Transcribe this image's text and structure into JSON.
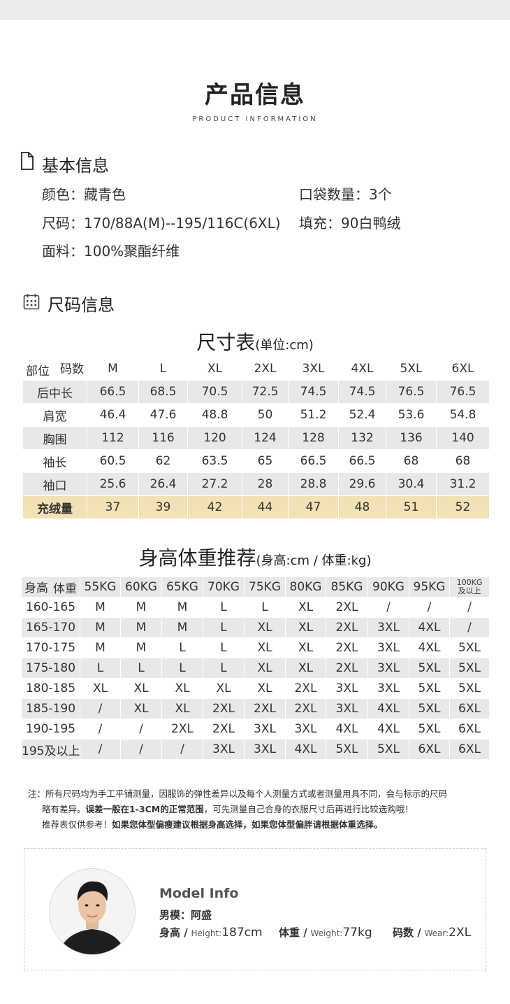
{
  "header": {
    "title": "产品信息",
    "subtitle": "PRODUCT INFORMATION"
  },
  "basic_info": {
    "heading": "基本信息",
    "color": "颜色：藏青色",
    "pockets": "口袋数量：3个",
    "size": "尺码：170/88A(M)--195/116C(6XL)",
    "filling": "填充：90白鸭绒",
    "fabric": "面料：100%聚酯纤维"
  },
  "size_info": {
    "heading": "尺码信息",
    "table_title": "尺寸表",
    "table_unit": "(单位:cm)",
    "corner_top": "码数",
    "corner_bottom": "部位",
    "columns": [
      "M",
      "L",
      "XL",
      "2XL",
      "3XL",
      "4XL",
      "5XL",
      "6XL"
    ],
    "rows": [
      {
        "label": "后中长",
        "values": [
          "66.5",
          "68.5",
          "70.5",
          "72.5",
          "74.5",
          "74.5",
          "76.5",
          "76.5"
        ]
      },
      {
        "label": "肩宽",
        "values": [
          "46.4",
          "47.6",
          "48.8",
          "50",
          "51.2",
          "52.4",
          "53.6",
          "54.8"
        ]
      },
      {
        "label": "胸围",
        "values": [
          "112",
          "116",
          "120",
          "124",
          "128",
          "132",
          "136",
          "140"
        ]
      },
      {
        "label": "袖长",
        "values": [
          "60.5",
          "62",
          "63.5",
          "65",
          "66.5",
          "66.5",
          "68",
          "68"
        ]
      },
      {
        "label": "袖口",
        "values": [
          "25.6",
          "26.4",
          "27.2",
          "28",
          "28.8",
          "29.6",
          "30.4",
          "31.2"
        ]
      },
      {
        "label": "充绒量",
        "values": [
          "37",
          "39",
          "42",
          "44",
          "47",
          "48",
          "51",
          "52"
        ]
      }
    ],
    "highlight_color": "#f3e1b6"
  },
  "recommendation": {
    "title": "身高体重推荐",
    "unit": "(身高:cm / 体重:kg)",
    "corner_top": "体重",
    "corner_bottom": "身高",
    "columns": [
      "55KG",
      "60KG",
      "65KG",
      "70KG",
      "75KG",
      "80KG",
      "85KG",
      "90KG",
      "95KG"
    ],
    "last_column_line1": "100KG",
    "last_column_line2": "及以上",
    "rows": [
      {
        "label": "160-165",
        "values": [
          "M",
          "M",
          "M",
          "L",
          "L",
          "XL",
          "2XL",
          "/",
          "/",
          "/"
        ]
      },
      {
        "label": "165-170",
        "values": [
          "M",
          "M",
          "M",
          "L",
          "XL",
          "XL",
          "2XL",
          "3XL",
          "4XL",
          "/"
        ]
      },
      {
        "label": "170-175",
        "values": [
          "M",
          "M",
          "L",
          "L",
          "XL",
          "XL",
          "2XL",
          "3XL",
          "4XL",
          "5XL"
        ]
      },
      {
        "label": "175-180",
        "values": [
          "L",
          "L",
          "L",
          "L",
          "XL",
          "XL",
          "2XL",
          "3XL",
          "5XL",
          "5XL"
        ]
      },
      {
        "label": "180-185",
        "values": [
          "XL",
          "XL",
          "XL",
          "XL",
          "XL",
          "2XL",
          "3XL",
          "3XL",
          "5XL",
          "5XL"
        ]
      },
      {
        "label": "185-190",
        "values": [
          "/",
          "XL",
          "XL",
          "2XL",
          "2XL",
          "2XL",
          "3XL",
          "4XL",
          "5XL",
          "6XL"
        ]
      },
      {
        "label": "190-195",
        "values": [
          "/",
          "/",
          "2XL",
          "2XL",
          "3XL",
          "3XL",
          "4XL",
          "4XL",
          "5XL",
          "6XL"
        ]
      },
      {
        "label": "195及以上",
        "values": [
          "/",
          "/",
          "/",
          "3XL",
          "3XL",
          "4XL",
          "5XL",
          "5XL",
          "6XL",
          "6XL"
        ]
      }
    ]
  },
  "notes": {
    "line1": "注：所有尺码均为手工平铺测量，因服饰的弹性差异以及每个人测量方式或者测量用具不同，会与标示的尺码",
    "line2a": "略有差异。",
    "line2b": "误差一般在1-3CM的正常范围",
    "line2c": "，可先测量自己合身的衣服尺寸后再进行比较选购哦！",
    "line3a": "推荐表仅供参考！",
    "line3b": "如果您体型偏瘦建议根据身高选择，如果您体型偏胖请根据体重选择。"
  },
  "model": {
    "title": "Model Info",
    "name": "男模：阿盛",
    "height_label": "身高 /",
    "height_en": "Height:",
    "height_value": "187cm",
    "weight_label": "体重 /",
    "weight_en": "Weight:",
    "weight_value": "77kg",
    "wear_label": "码数 /",
    "wear_en": "Wear:",
    "wear_value": "2XL"
  }
}
